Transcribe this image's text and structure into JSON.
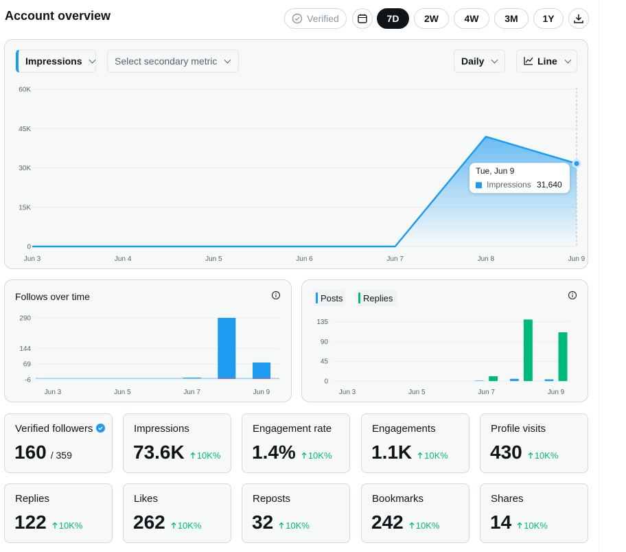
{
  "header": {
    "title": "Account overview",
    "verified": "Verified",
    "ranges": [
      "7D",
      "2W",
      "4W",
      "3M",
      "1Y"
    ],
    "active_range": 0
  },
  "controls": {
    "metric": "Impressions",
    "secondary": "Select secondary metric",
    "interval": "Daily",
    "style": "Line"
  },
  "chart_data": [
    {
      "type": "line",
      "area": true,
      "grid": true,
      "categories": [
        "Jun 3",
        "Jun 4",
        "Jun 5",
        "Jun 6",
        "Jun 7",
        "Jun 8",
        "Jun 9"
      ],
      "series": [
        {
          "name": "Impressions",
          "color": "#1d9bf0",
          "values": [
            0,
            0,
            0,
            0,
            0,
            41900,
            31640
          ],
          "value_labels": [
            null,
            null,
            null,
            null,
            null,
            null,
            "31,640"
          ]
        }
      ],
      "ylim": [
        0,
        60000
      ],
      "yticks": [
        0,
        {
          "value": 15000,
          "label": "15K"
        },
        {
          "value": 30000,
          "label": "30K"
        },
        {
          "value": 45000,
          "label": "45K"
        },
        {
          "value": 60000,
          "label": "60K"
        }
      ],
      "tooltip": {
        "title": "Tue, Jun 9",
        "index": 6
      }
    },
    {
      "type": "bar",
      "stacked": true,
      "grid": true,
      "title": "Follows over time",
      "categories": [
        "Jun 3",
        null,
        "Jun 5",
        null,
        "Jun 7",
        null,
        "Jun 9"
      ],
      "series": [
        {
          "color": "#1d9bf0",
          "values": [
            0,
            0,
            0,
            0,
            4,
            290,
            76
          ]
        },
        {
          "color": "#f4212e",
          "values": [
            0,
            0,
            0,
            0,
            0,
            -2,
            -2
          ]
        }
      ],
      "ylim": [
        -6,
        303
      ],
      "yticks": [
        -6,
        69,
        144,
        290
      ]
    },
    {
      "type": "bar",
      "grouped": true,
      "grid": true,
      "categories": [
        "Jun 3",
        null,
        "Jun 5",
        null,
        "Jun 7",
        null,
        "Jun 9"
      ],
      "series": [
        {
          "name": "Posts",
          "color": "#1d9bf0",
          "values": [
            0,
            0,
            0,
            0,
            1,
            5,
            4
          ]
        },
        {
          "name": "Replies",
          "color": "#00ba7c",
          "values": [
            0,
            0,
            0,
            0,
            11,
            140,
            111
          ]
        }
      ],
      "ylim": [
        0,
        150
      ],
      "yticks": [
        0,
        45,
        90,
        135
      ]
    }
  ],
  "cards": [
    {
      "label": "Verified followers",
      "value": "160",
      "total": "/ 359"
    },
    {
      "label": "Impressions",
      "value": "73.6K",
      "change": "10K%"
    },
    {
      "label": "Engagement rate",
      "value": "1.4%",
      "change": "10K%"
    },
    {
      "label": "Engagements",
      "value": "1.1K",
      "change": "10K%"
    },
    {
      "label": "Profile visits",
      "value": "430",
      "change": "10K%"
    },
    {
      "label": "Replies",
      "value": "122",
      "change": "10K%"
    },
    {
      "label": "Likes",
      "value": "262",
      "change": "10K%"
    },
    {
      "label": "Reposts",
      "value": "32",
      "change": "10K%"
    },
    {
      "label": "Bookmarks",
      "value": "242",
      "change": "10K%"
    },
    {
      "label": "Shares",
      "value": "14",
      "change": "10K%"
    }
  ]
}
